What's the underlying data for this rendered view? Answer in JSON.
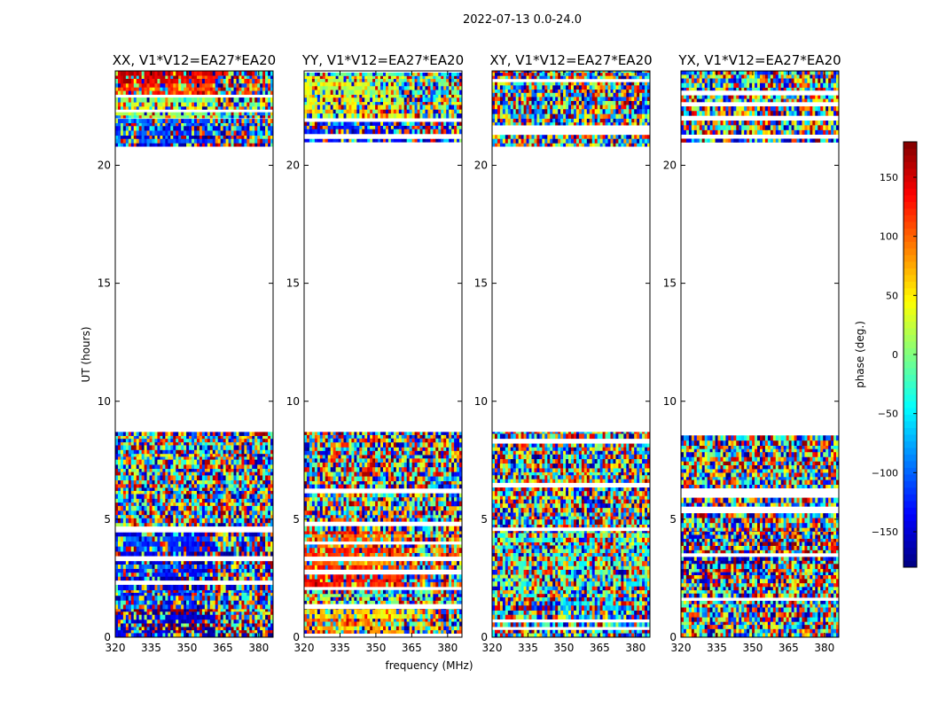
{
  "chart_data": {
    "type": "heatmap",
    "title": "2022-07-13 0.0-24.0",
    "xlabel": "frequency (MHz)",
    "ylabel": "UT (hours)",
    "xlim": [
      320,
      386
    ],
    "ylim": [
      0,
      24
    ],
    "xticks": [
      320,
      335,
      350,
      365,
      380
    ],
    "yticks": [
      0,
      5,
      10,
      15,
      20
    ],
    "panels": [
      {
        "name": "XX, V1*V12=EA27*EA20",
        "bands": [
          {
            "t0": 0.0,
            "t1": 1.2,
            "phase": -150,
            "noise": 0.4
          },
          {
            "t0": 1.2,
            "t1": 2.0,
            "phase": -100,
            "noise": 0.7
          },
          {
            "t0": 2.0,
            "t1": 4.5,
            "phase": -130,
            "noise": 0.35
          },
          {
            "t0": 4.5,
            "t1": 8.7,
            "phase": 0,
            "noise": 1.0
          },
          {
            "t0": 20.8,
            "t1": 22.0,
            "phase": -120,
            "noise": 0.45
          },
          {
            "t0": 22.0,
            "t1": 23.0,
            "phase": 20,
            "noise": 0.5
          },
          {
            "t0": 23.0,
            "t1": 24.0,
            "phase": 150,
            "noise": 0.35
          }
        ]
      },
      {
        "name": "YY, V1*V12=EA27*EA20",
        "bands": [
          {
            "t0": 0.0,
            "t1": 1.2,
            "phase": 80,
            "noise": 0.4
          },
          {
            "t0": 1.2,
            "t1": 2.0,
            "phase": 20,
            "noise": 0.7
          },
          {
            "t0": 2.0,
            "t1": 4.5,
            "phase": 120,
            "noise": 0.35
          },
          {
            "t0": 4.5,
            "t1": 8.7,
            "phase": 0,
            "noise": 1.0
          },
          {
            "t0": 20.8,
            "t1": 22.0,
            "phase": -140,
            "noise": 0.45
          },
          {
            "t0": 22.0,
            "t1": 23.0,
            "phase": 60,
            "noise": 0.5
          },
          {
            "t0": 23.0,
            "t1": 24.0,
            "phase": 20,
            "noise": 0.4
          }
        ]
      },
      {
        "name": "XY, V1*V12=EA27*EA20",
        "bands": [
          {
            "t0": 0.0,
            "t1": 2.0,
            "phase": -40,
            "noise": 0.9
          },
          {
            "t0": 2.0,
            "t1": 4.5,
            "phase": -10,
            "noise": 0.75
          },
          {
            "t0": 4.5,
            "t1": 8.7,
            "phase": 0,
            "noise": 1.0
          },
          {
            "t0": 20.8,
            "t1": 24.0,
            "phase": -60,
            "noise": 0.95
          }
        ]
      },
      {
        "name": "YX, V1*V12=EA27*EA20",
        "bands": [
          {
            "t0": 0.0,
            "t1": 2.0,
            "phase": 0,
            "noise": 0.95
          },
          {
            "t0": 2.0,
            "t1": 4.5,
            "phase": -170,
            "noise": 0.7
          },
          {
            "t0": 4.5,
            "t1": 8.7,
            "phase": 0,
            "noise": 1.0
          },
          {
            "t0": 20.8,
            "t1": 24.0,
            "phase": 60,
            "noise": 0.95
          }
        ]
      }
    ],
    "colorbar": {
      "label": "phase (deg.)",
      "range": [
        -180,
        180
      ],
      "ticks": [
        -150,
        -100,
        -50,
        0,
        50,
        100,
        150
      ],
      "tick_labels": [
        "−150",
        "−100",
        "−50",
        "0",
        "50",
        "100",
        "150"
      ],
      "colormap": "jet"
    }
  }
}
